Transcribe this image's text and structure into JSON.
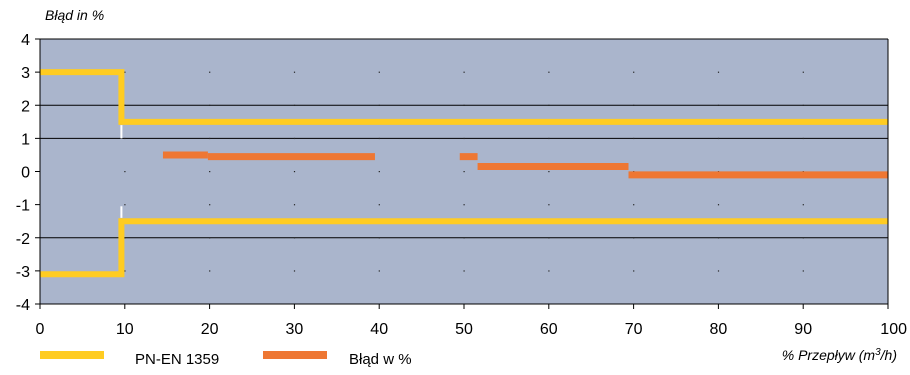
{
  "chart_data": {
    "type": "line",
    "ylabel": "Błąd in %",
    "xlabel_prefix": "% Przepływ (m",
    "xlabel_sup": "3",
    "xlabel_suffix": "/h)",
    "xlim": [
      0,
      100
    ],
    "ylim": [
      -4,
      4
    ],
    "x_ticks": [
      0,
      10,
      20,
      30,
      40,
      50,
      60,
      70,
      80,
      90,
      100
    ],
    "x_tick_labels": [
      "0",
      "10",
      "20",
      "30",
      "40",
      "50",
      "60",
      "70",
      "80",
      "90",
      "100"
    ],
    "y_ticks": [
      4,
      3,
      2,
      1,
      0,
      -1,
      -2,
      -3,
      -4
    ],
    "y_tick_labels": [
      "4",
      "3",
      "2",
      "1",
      "0",
      "-1",
      "-2",
      "-3",
      "-4"
    ],
    "grid": {
      "horizontal_lines_at": [
        2,
        1,
        -2
      ],
      "dots": true
    },
    "legend_position": "bottom-left",
    "series": [
      {
        "name": "PN-EN 1359",
        "color": "#FFCC22",
        "style": "step-limits",
        "upper": [
          [
            0,
            3
          ],
          [
            9.6,
            3
          ],
          [
            9.6,
            1.5
          ],
          [
            100,
            1.5
          ]
        ],
        "lower": [
          [
            0,
            -3.1
          ],
          [
            9.6,
            -3.1
          ],
          [
            9.6,
            -1.5
          ],
          [
            100,
            -1.5
          ]
        ]
      },
      {
        "name": "Błąd w %",
        "color": "#EE7733",
        "style": "segments",
        "segments": [
          {
            "x": [
              14.5,
              19.8
            ],
            "y": 0.5
          },
          {
            "x": [
              19.8,
              39.5
            ],
            "y": 0.45
          },
          {
            "x": [
              49.5,
              51.6
            ],
            "y": 0.45
          },
          {
            "x": [
              51.6,
              69.4
            ],
            "y": 0.15
          },
          {
            "x": [
              69.4,
              100
            ],
            "y": -0.1
          }
        ]
      }
    ],
    "colors": {
      "plot_background": "#AAB5CC",
      "axis": "#000000"
    }
  }
}
